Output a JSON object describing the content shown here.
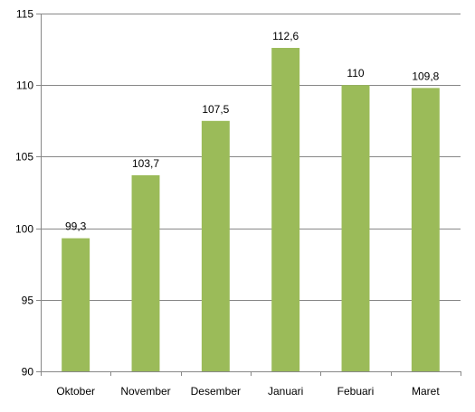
{
  "chart_data": {
    "type": "bar",
    "title": "",
    "xlabel": "",
    "ylabel": "",
    "categories": [
      "Oktober",
      "November",
      "Desember",
      "Januari",
      "Febuari",
      "Maret"
    ],
    "values": [
      99.3,
      103.7,
      107.5,
      112.6,
      110,
      109.8
    ],
    "data_labels": [
      "99,3",
      "103,7",
      "107,5",
      "112,6",
      "110",
      "109,8"
    ],
    "ylim": [
      90,
      115
    ],
    "yticks": [
      90,
      95,
      100,
      105,
      110,
      115
    ],
    "ytick_labels": [
      "90",
      "95",
      "100",
      "105",
      "110",
      "115"
    ],
    "grid": "horizontal",
    "legend": "none",
    "bar_color": "#9bbb59",
    "grid_color": "#878787"
  }
}
